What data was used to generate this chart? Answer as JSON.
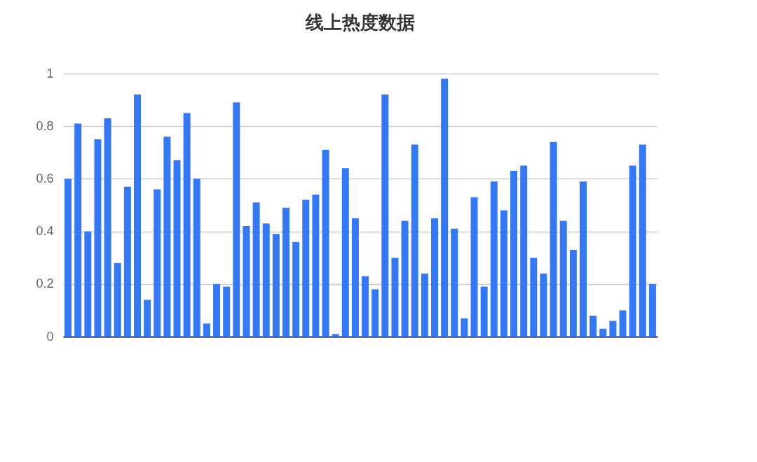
{
  "chart_data": {
    "type": "bar",
    "title": "线上热度数据",
    "categories": [
      null,
      null,
      null,
      null,
      null,
      null,
      null,
      null,
      null,
      null,
      null,
      null,
      null,
      null,
      null,
      null,
      null,
      null,
      null,
      null,
      null,
      null,
      null,
      null,
      null,
      null,
      null,
      null,
      null,
      null,
      null,
      null,
      null,
      null,
      null,
      null,
      null,
      null,
      null,
      null,
      null,
      null,
      null,
      null,
      null,
      null,
      null,
      null,
      null,
      null,
      null,
      null,
      null,
      null,
      null,
      null,
      null,
      null,
      null,
      null
    ],
    "values": [
      0.6,
      0.81,
      0.4,
      0.75,
      0.83,
      0.28,
      0.57,
      0.92,
      0.14,
      0.56,
      0.76,
      0.67,
      0.85,
      0.6,
      0.05,
      0.2,
      0.19,
      0.89,
      0.42,
      0.51,
      0.43,
      0.39,
      0.49,
      0.36,
      0.52,
      0.54,
      0.71,
      0.01,
      0.64,
      0.45,
      0.23,
      0.18,
      0.92,
      0.3,
      0.44,
      0.73,
      0.24,
      0.45,
      0.98,
      0.41,
      0.07,
      0.53,
      0.19,
      0.59,
      0.48,
      0.63,
      0.65,
      0.3,
      0.24,
      0.74,
      0.44,
      0.33,
      0.59,
      0.08,
      0.03,
      0.06,
      0.1,
      0.65,
      0.73,
      0.2
    ],
    "color": "#3478f6",
    "ylim": [
      0,
      1
    ],
    "yticks": [
      0,
      0.2,
      0.4,
      0.6,
      0.8,
      1
    ],
    "grid": "y",
    "tick_labels": "y"
  }
}
